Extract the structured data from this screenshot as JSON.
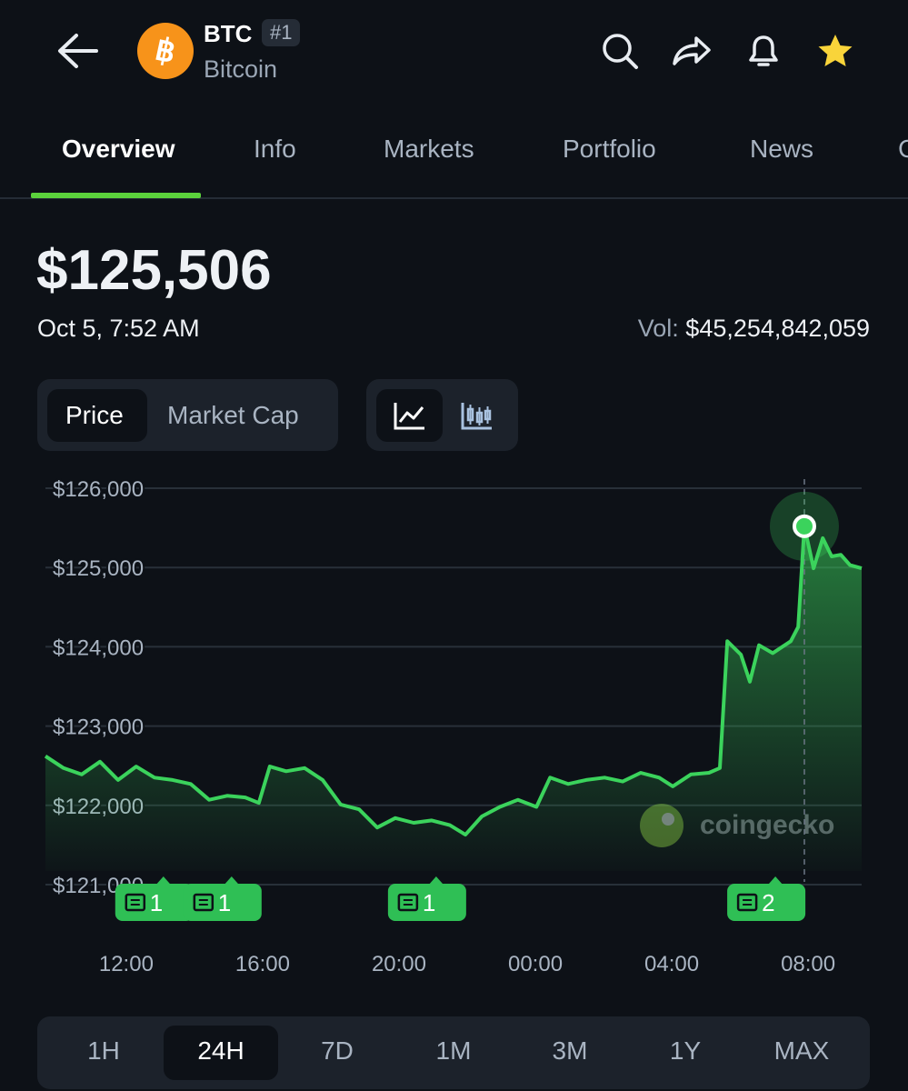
{
  "header": {
    "symbol": "BTC",
    "rank": "#1",
    "name": "Bitcoin"
  },
  "tabs": [
    "Overview",
    "Info",
    "Markets",
    "Portfolio",
    "News",
    "C"
  ],
  "price": "$125,506",
  "timestamp": "Oct 5, 7:52 AM",
  "volume_label": "Vol:",
  "volume": "$45,254,842,059",
  "metric_toggle": [
    "Price",
    "Market Cap"
  ],
  "ranges": [
    "1H",
    "24H",
    "7D",
    "1M",
    "3M",
    "1Y",
    "MAX"
  ],
  "chart_data": {
    "type": "line",
    "x": [
      9.63,
      10.16,
      10.69,
      11.23,
      11.76,
      12.29,
      12.83,
      13.36,
      13.89,
      14.43,
      14.96,
      15.49,
      15.89,
      16.21,
      16.69,
      17.23,
      17.76,
      18.29,
      18.83,
      19.36,
      19.89,
      20.43,
      20.96,
      21.49,
      21.95,
      22.43,
      22.96,
      23.49,
      24.03,
      24.43,
      24.96,
      25.49,
      26.03,
      26.56,
      27.09,
      27.63,
      28.03,
      28.56,
      29.09,
      29.41,
      29.63,
      30.03,
      30.29,
      30.56,
      30.96,
      31.49,
      31.71,
      31.89,
      32.16,
      32.43,
      32.69,
      32.96,
      33.23,
      33.57
    ],
    "values": [
      122620,
      122470,
      122390,
      122550,
      122320,
      122490,
      122350,
      122320,
      122270,
      122070,
      122120,
      122100,
      122030,
      122490,
      122430,
      122470,
      122320,
      122010,
      121950,
      121720,
      121840,
      121780,
      121810,
      121750,
      121630,
      121860,
      121980,
      122070,
      121980,
      122350,
      122270,
      122320,
      122350,
      122300,
      122410,
      122350,
      122240,
      122390,
      122410,
      122470,
      124070,
      123900,
      123560,
      124020,
      123920,
      124070,
      124250,
      125520,
      124990,
      125370,
      125140,
      125160,
      125030,
      124990
    ],
    "color": "#3bd35c",
    "area": true,
    "xlim": [
      9.63,
      33.57
    ],
    "xticks": [
      {
        "value": 12,
        "label": "12:00"
      },
      {
        "value": 16,
        "label": "16:00"
      },
      {
        "value": 20,
        "label": "20:00"
      },
      {
        "value": 24,
        "label": "00:00"
      },
      {
        "value": 28,
        "label": "04:00"
      },
      {
        "value": 32,
        "label": "08:00"
      }
    ],
    "ylim": [
      121000,
      126000
    ],
    "yticks": [
      {
        "value": 121000,
        "label": "$121,000"
      },
      {
        "value": 122000,
        "label": "$122,000"
      },
      {
        "value": 123000,
        "label": "$123,000"
      },
      {
        "value": 124000,
        "label": "$124,000"
      },
      {
        "value": 125000,
        "label": "$125,000"
      },
      {
        "value": 126000,
        "label": "$126,000"
      }
    ],
    "grid": true,
    "selected_x": 31.89,
    "watermark": "coingecko",
    "news": [
      {
        "x": 13.09,
        "count": 1
      },
      {
        "x": 15.09,
        "count": 1
      },
      {
        "x": 21.09,
        "count": 1
      },
      {
        "x": 31.04,
        "count": 2
      }
    ]
  }
}
